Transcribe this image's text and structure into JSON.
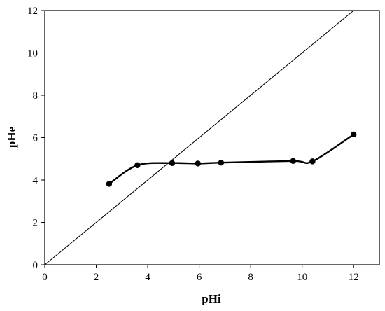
{
  "chart_data": {
    "type": "scatter",
    "xlabel": "pHi",
    "ylabel": "pHe",
    "xlim": [
      0,
      13
    ],
    "ylim": [
      0,
      12
    ],
    "x_ticks": [
      0,
      2,
      4,
      6,
      8,
      10,
      12
    ],
    "y_ticks": [
      0,
      2,
      4,
      6,
      8,
      10,
      12
    ],
    "grid": false,
    "series": [
      {
        "style": "smooth line with markers",
        "color": "#000000",
        "points": [
          {
            "x": 2.5,
            "y": 3.82
          },
          {
            "x": 3.6,
            "y": 4.7
          },
          {
            "x": 4.95,
            "y": 4.8
          },
          {
            "x": 5.95,
            "y": 4.78
          },
          {
            "x": 6.85,
            "y": 4.82
          },
          {
            "x": 9.65,
            "y": 4.9
          },
          {
            "x": 10.4,
            "y": 4.88
          },
          {
            "x": 12.0,
            "y": 6.15
          }
        ]
      }
    ],
    "reference_line": {
      "points": [
        {
          "x": 0,
          "y": 0
        },
        {
          "x": 12,
          "y": 12
        }
      ],
      "color": "#000000"
    }
  }
}
